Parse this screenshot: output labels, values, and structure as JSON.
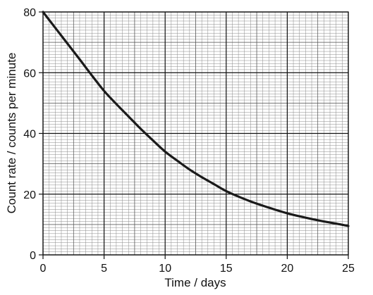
{
  "chart_data": {
    "type": "line",
    "title": "",
    "xlabel": "Time / days",
    "ylabel": "Count rate / counts per minute",
    "xlim": [
      0,
      25
    ],
    "ylim": [
      0,
      80
    ],
    "x_ticks": [
      "0",
      "5",
      "10",
      "15",
      "20",
      "25"
    ],
    "y_ticks": [
      "0",
      "20",
      "40",
      "60",
      "80"
    ],
    "grid": true,
    "series": [
      {
        "x": [
          0,
          1,
          2,
          3,
          4,
          5,
          6,
          7,
          8,
          9,
          10,
          11,
          12,
          13,
          14,
          15,
          16,
          17,
          18,
          19,
          20,
          21,
          22,
          23,
          24,
          25
        ],
        "values": [
          80,
          74.8,
          69.6,
          64.4,
          59.1,
          54,
          49.7,
          45.6,
          41.5,
          37.7,
          34,
          31,
          28.1,
          25.6,
          23.3,
          21,
          19.2,
          17.6,
          16.2,
          14.9,
          13.7,
          12.7,
          11.8,
          11,
          10.3,
          9.5
        ]
      }
    ]
  }
}
